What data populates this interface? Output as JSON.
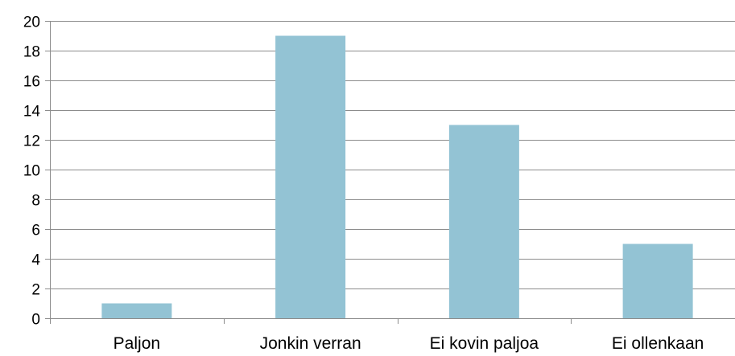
{
  "chart_data": {
    "type": "bar",
    "categories": [
      "Paljon",
      "Jonkin verran",
      "Ei kovin paljoa",
      "Ei ollenkaan"
    ],
    "values": [
      1,
      19,
      13,
      5
    ],
    "title": "",
    "xlabel": "",
    "ylabel": "",
    "ylim": [
      0,
      20
    ],
    "yticks": [
      0,
      2,
      4,
      6,
      8,
      10,
      12,
      14,
      16,
      18,
      20
    ],
    "grid": true,
    "legend": "none",
    "bar_color": "#93c3d4",
    "grid_color": "#8c8c8c"
  }
}
